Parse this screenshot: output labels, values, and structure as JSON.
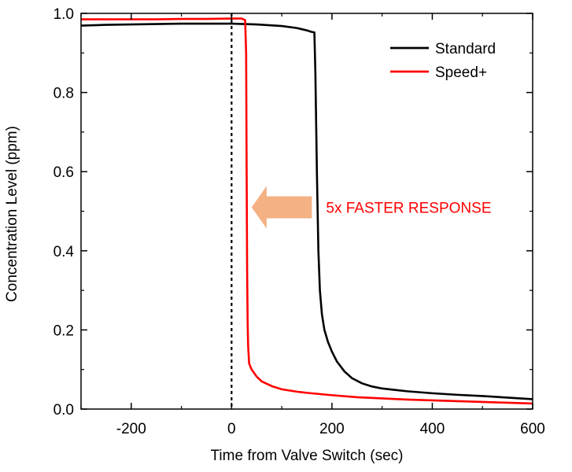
{
  "chart_data": {
    "type": "line",
    "title": "",
    "xlabel": "Time from Valve Switch (sec)",
    "ylabel": "Concentration Level (ppm)",
    "xlim": [
      -300,
      600
    ],
    "ylim": [
      0,
      1.0
    ],
    "xticks": [
      -200,
      0,
      200,
      400,
      600
    ],
    "yticks": [
      0.0,
      0.2,
      0.4,
      0.6,
      0.8,
      1.0
    ],
    "xtick_labels": [
      "-200",
      "0",
      "200",
      "400",
      "600"
    ],
    "ytick_labels": [
      "0.0",
      "0.2",
      "0.4",
      "0.6",
      "0.8",
      "1.0"
    ],
    "grid": false,
    "legend_position": "top-right",
    "reference_line": {
      "x": 0,
      "style": "dotted",
      "color": "#000000"
    },
    "series": [
      {
        "name": "Standard",
        "color": "#000000",
        "points": [
          [
            -300,
            0.969
          ],
          [
            -250,
            0.971
          ],
          [
            -200,
            0.972
          ],
          [
            -150,
            0.973
          ],
          [
            -100,
            0.974
          ],
          [
            -50,
            0.974
          ],
          [
            0,
            0.974
          ],
          [
            50,
            0.972
          ],
          [
            100,
            0.968
          ],
          [
            130,
            0.963
          ],
          [
            150,
            0.957
          ],
          [
            160,
            0.953
          ],
          [
            165,
            0.952
          ],
          [
            167,
            0.85
          ],
          [
            170,
            0.6
          ],
          [
            173,
            0.4
          ],
          [
            176,
            0.3
          ],
          [
            180,
            0.24
          ],
          [
            185,
            0.2
          ],
          [
            192,
            0.17
          ],
          [
            200,
            0.145
          ],
          [
            210,
            0.12
          ],
          [
            225,
            0.095
          ],
          [
            240,
            0.078
          ],
          [
            260,
            0.065
          ],
          [
            280,
            0.057
          ],
          [
            300,
            0.052
          ],
          [
            350,
            0.045
          ],
          [
            400,
            0.04
          ],
          [
            450,
            0.036
          ],
          [
            500,
            0.033
          ],
          [
            550,
            0.029
          ],
          [
            600,
            0.025
          ]
        ]
      },
      {
        "name": "Speed+",
        "color": "#ff0000",
        "points": [
          [
            -300,
            0.985
          ],
          [
            -250,
            0.985
          ],
          [
            -200,
            0.985
          ],
          [
            -150,
            0.985
          ],
          [
            -100,
            0.986
          ],
          [
            -50,
            0.986
          ],
          [
            0,
            0.987
          ],
          [
            20,
            0.987
          ],
          [
            27,
            0.983
          ],
          [
            29,
            0.9
          ],
          [
            30,
            0.6
          ],
          [
            31,
            0.35
          ],
          [
            32,
            0.22
          ],
          [
            33,
            0.16
          ],
          [
            35,
            0.115
          ],
          [
            40,
            0.1
          ],
          [
            50,
            0.082
          ],
          [
            60,
            0.07
          ],
          [
            80,
            0.058
          ],
          [
            100,
            0.05
          ],
          [
            130,
            0.044
          ],
          [
            150,
            0.041
          ],
          [
            200,
            0.035
          ],
          [
            250,
            0.03
          ],
          [
            300,
            0.027
          ],
          [
            350,
            0.024
          ],
          [
            400,
            0.022
          ],
          [
            450,
            0.02
          ],
          [
            500,
            0.018
          ],
          [
            550,
            0.016
          ],
          [
            600,
            0.014
          ]
        ]
      }
    ],
    "annotations": [
      {
        "text": "5x FASTER RESPONSE",
        "color": "#ff0000",
        "arrow_color": "#f4b183",
        "arrow_from_x": 160,
        "arrow_to_x": 40,
        "y": 0.51
      }
    ]
  }
}
